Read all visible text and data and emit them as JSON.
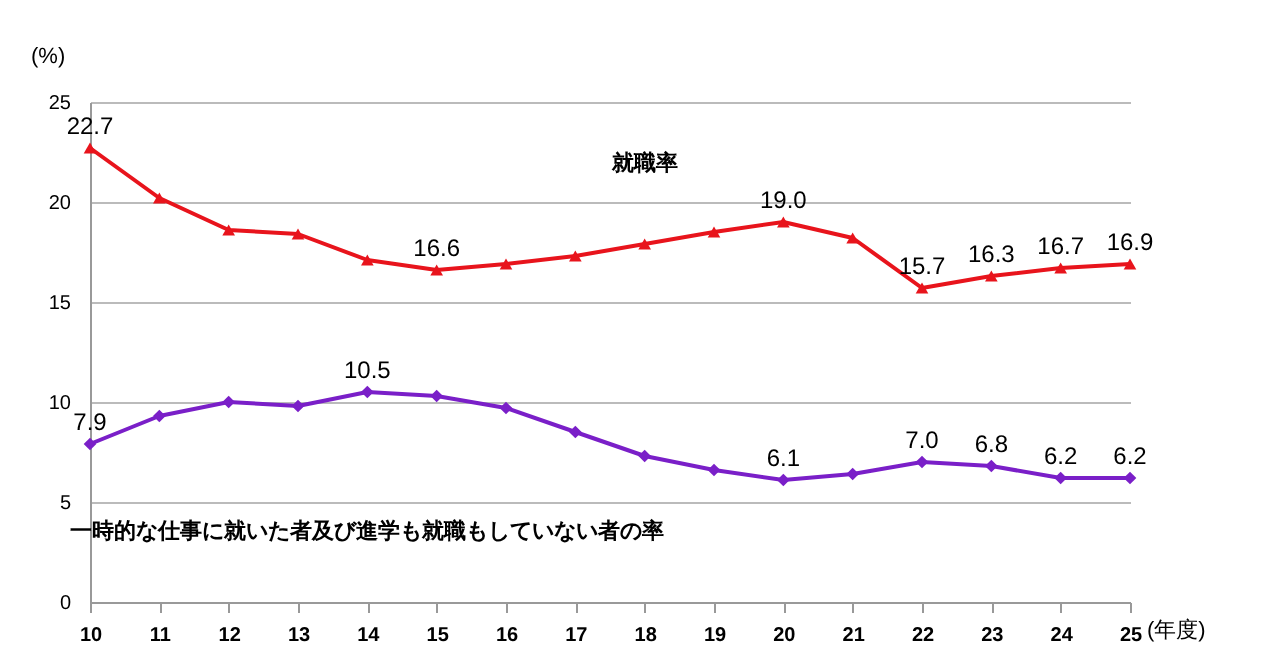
{
  "chart_data": {
    "type": "line",
    "xlabel": "(年度)",
    "ylabel": "(%)",
    "categories": [
      "10",
      "11",
      "12",
      "13",
      "14",
      "15",
      "16",
      "17",
      "18",
      "19",
      "20",
      "21",
      "22",
      "23",
      "24",
      "25"
    ],
    "ylim": [
      0,
      25
    ],
    "yticks": [
      0,
      5,
      10,
      15,
      20,
      25
    ],
    "grid": "y",
    "series": [
      {
        "name": "就職率",
        "color": "#e8141c",
        "marker": "triangle",
        "values": [
          22.7,
          20.2,
          18.6,
          18.4,
          17.1,
          16.6,
          16.9,
          17.3,
          17.9,
          18.5,
          19.0,
          18.2,
          15.7,
          16.3,
          16.7,
          16.9
        ],
        "value_labels": [
          "22.7",
          null,
          null,
          null,
          null,
          "16.6",
          null,
          null,
          null,
          null,
          "19.0",
          null,
          "15.7",
          "16.3",
          "16.7",
          "16.9"
        ]
      },
      {
        "name": "一時的な仕事に就いた者及び進学も就職もしていない者の率",
        "color": "#7a1fc8",
        "marker": "diamond",
        "values": [
          7.9,
          9.3,
          10.0,
          9.8,
          10.5,
          10.3,
          9.7,
          8.5,
          7.3,
          6.6,
          6.1,
          6.4,
          7.0,
          6.8,
          6.2,
          6.2
        ],
        "value_labels": [
          "7.9",
          null,
          null,
          null,
          "10.5",
          null,
          null,
          null,
          null,
          null,
          "6.1",
          null,
          "7.0",
          "6.8",
          "6.2",
          "6.2"
        ]
      }
    ]
  }
}
